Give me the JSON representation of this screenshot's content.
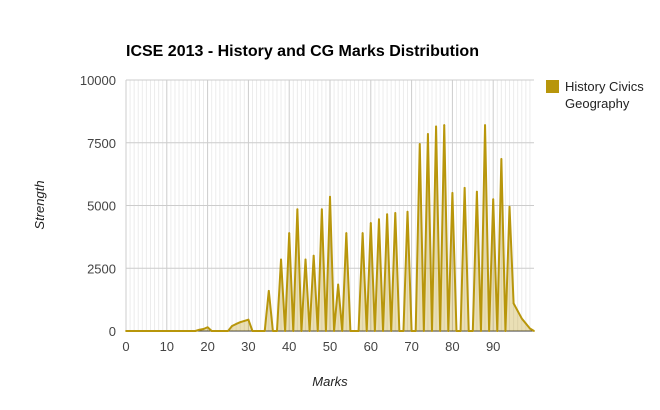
{
  "chart_data": {
    "type": "area",
    "title": "ICSE 2013 - History and CG Marks Distribution",
    "xlabel": "Marks",
    "ylabel": "Strength",
    "xlim": [
      0,
      100
    ],
    "ylim": [
      0,
      10000
    ],
    "xticks": [
      "0",
      "10",
      "20",
      "30",
      "40",
      "50",
      "60",
      "70",
      "80",
      "90"
    ],
    "yticks": [
      "0",
      "2500",
      "5000",
      "7500",
      "10000"
    ],
    "grid": true,
    "legend_position": "top-right",
    "series": [
      {
        "name": "History Civics Geography",
        "color": "#b8960b",
        "x": [
          0,
          1,
          2,
          3,
          4,
          5,
          6,
          7,
          8,
          9,
          10,
          11,
          12,
          13,
          14,
          15,
          16,
          17,
          18,
          19,
          20,
          21,
          22,
          23,
          24,
          25,
          26,
          27,
          28,
          29,
          30,
          31,
          32,
          33,
          34,
          35,
          36,
          37,
          38,
          39,
          40,
          41,
          42,
          43,
          44,
          45,
          46,
          47,
          48,
          49,
          50,
          51,
          52,
          53,
          54,
          55,
          56,
          57,
          58,
          59,
          60,
          61,
          62,
          63,
          64,
          65,
          66,
          67,
          68,
          69,
          70,
          71,
          72,
          73,
          74,
          75,
          76,
          77,
          78,
          79,
          80,
          81,
          82,
          83,
          84,
          85,
          86,
          87,
          88,
          89,
          90,
          91,
          92,
          93,
          94,
          95,
          96,
          97,
          98,
          99,
          100
        ],
        "values": [
          0,
          0,
          0,
          0,
          0,
          0,
          0,
          0,
          0,
          0,
          0,
          0,
          0,
          0,
          0,
          0,
          0,
          0,
          50,
          80,
          150,
          0,
          0,
          0,
          0,
          0,
          200,
          280,
          350,
          400,
          450,
          0,
          0,
          0,
          0,
          1600,
          0,
          0,
          2850,
          0,
          3900,
          0,
          4850,
          0,
          2850,
          0,
          3000,
          0,
          4850,
          0,
          5350,
          0,
          1850,
          0,
          3900,
          0,
          0,
          0,
          3900,
          0,
          4300,
          0,
          4450,
          0,
          4650,
          0,
          4700,
          0,
          0,
          4750,
          0,
          0,
          7450,
          0,
          7850,
          0,
          8150,
          0,
          8200,
          0,
          5500,
          0,
          0,
          5700,
          0,
          0,
          5550,
          0,
          8200,
          0,
          5250,
          0,
          6850,
          0,
          4950,
          1100,
          800,
          500,
          300,
          100,
          0
        ]
      }
    ]
  }
}
